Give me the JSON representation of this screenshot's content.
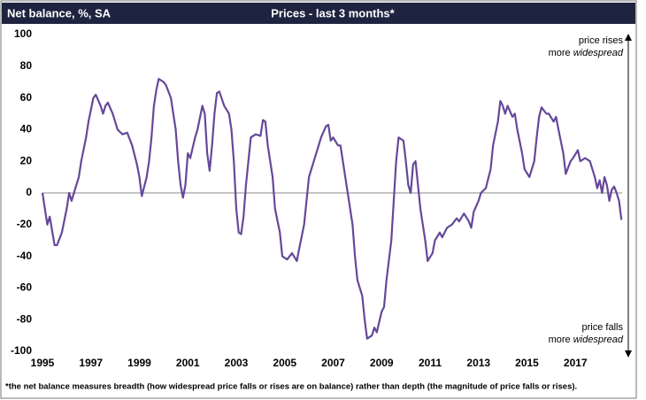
{
  "chart_data": {
    "type": "line",
    "title": "Prices - last 3 months*",
    "y_label": "Net balance, %, SA",
    "annotations": {
      "top": [
        "price rises",
        "more",
        "widespread"
      ],
      "bottom": [
        "price falls",
        "more",
        "widespread"
      ]
    },
    "footnote": "*the net balance measures breadth (how widespread price falls or rises are on balance)  rather than depth (the magnitude of price falls or rises).",
    "color": "#65489a",
    "xlim": [
      1995,
      2019
    ],
    "xticks": [
      1995,
      1997,
      1999,
      2001,
      2003,
      2005,
      2007,
      2009,
      2011,
      2013,
      2015,
      2017
    ],
    "ylim": [
      -100,
      100
    ],
    "yticks": [
      -100,
      -80,
      -60,
      -40,
      -20,
      0,
      20,
      40,
      60,
      80,
      100
    ],
    "x": [
      1995.0,
      1995.2,
      1995.3,
      1995.5,
      1995.6,
      1995.8,
      1996.0,
      1996.1,
      1996.2,
      1996.4,
      1996.5,
      1996.6,
      1996.8,
      1996.9,
      1997.1,
      1997.2,
      1997.4,
      1997.5,
      1997.6,
      1997.7,
      1997.9,
      1998.1,
      1998.3,
      1998.5,
      1998.7,
      1998.9,
      1999.0,
      1999.1,
      1999.3,
      1999.4,
      1999.5,
      1999.6,
      1999.7,
      1999.8,
      2000.0,
      2000.1,
      2000.3,
      2000.5,
      2000.6,
      2000.7,
      2000.8,
      2000.9,
      2001.0,
      2001.1,
      2001.3,
      2001.4,
      2001.6,
      2001.7,
      2001.8,
      2001.9,
      2002.0,
      2002.1,
      2002.2,
      2002.3,
      2002.5,
      2002.7,
      2002.8,
      2002.9,
      2003.0,
      2003.1,
      2003.2,
      2003.3,
      2003.4,
      2003.5,
      2003.6,
      2003.8,
      2004.0,
      2004.1,
      2004.2,
      2004.3,
      2004.5,
      2004.6,
      2004.8,
      2004.9,
      2005.1,
      2005.3,
      2005.5,
      2005.6,
      2005.8,
      2005.9,
      2006.0,
      2006.2,
      2006.4,
      2006.5,
      2006.7,
      2006.8,
      2006.9,
      2007.0,
      2007.2,
      2007.3,
      2007.4,
      2007.6,
      2007.8,
      2007.9,
      2008.0,
      2008.2,
      2008.3,
      2008.4,
      2008.6,
      2008.7,
      2008.8,
      2009.0,
      2009.1,
      2009.2,
      2009.4,
      2009.5,
      2009.6,
      2009.7,
      2009.9,
      2010.0,
      2010.1,
      2010.2,
      2010.3,
      2010.4,
      2010.6,
      2010.8,
      2010.9,
      2011.1,
      2011.2,
      2011.4,
      2011.5,
      2011.7,
      2011.9,
      2012.1,
      2012.2,
      2012.4,
      2012.6,
      2012.7,
      2012.8,
      2013.0,
      2013.1,
      2013.3,
      2013.5,
      2013.6,
      2013.8,
      2013.9,
      2014.0,
      2014.1,
      2014.2,
      2014.4,
      2014.5,
      2014.6,
      2014.8,
      2014.9,
      2015.1,
      2015.3,
      2015.4,
      2015.5,
      2015.6,
      2015.8,
      2015.9,
      2016.1,
      2016.2,
      2016.3,
      2016.5,
      2016.6,
      2016.8,
      2016.9,
      2017.1,
      2017.2,
      2017.4,
      2017.6,
      2017.7,
      2017.8,
      2017.9,
      2018.0,
      2018.1,
      2018.2,
      2018.3,
      2018.4,
      2018.5,
      2018.6,
      2018.7,
      2018.8,
      2018.9
    ],
    "values": [
      0,
      -20,
      -15,
      -33,
      -33,
      -25,
      -10,
      0,
      -5,
      5,
      10,
      20,
      35,
      45,
      60,
      62,
      55,
      50,
      55,
      57,
      50,
      40,
      37,
      38,
      30,
      18,
      10,
      -2,
      10,
      20,
      35,
      55,
      65,
      72,
      70,
      68,
      60,
      40,
      20,
      5,
      -3,
      5,
      25,
      22,
      35,
      40,
      55,
      50,
      25,
      14,
      30,
      50,
      63,
      64,
      55,
      50,
      40,
      20,
      -10,
      -25,
      -26,
      -15,
      5,
      20,
      35,
      37,
      36,
      46,
      45,
      30,
      10,
      -10,
      -25,
      -40,
      -42,
      -38,
      -43,
      -35,
      -20,
      -5,
      10,
      20,
      30,
      35,
      42,
      43,
      33,
      35,
      30,
      30,
      20,
      0,
      -20,
      -40,
      -55,
      -65,
      -80,
      -92,
      -90,
      -85,
      -88,
      -75,
      -72,
      -55,
      -30,
      -5,
      20,
      35,
      33,
      20,
      5,
      0,
      18,
      20,
      -10,
      -30,
      -43,
      -38,
      -30,
      -25,
      -28,
      -22,
      -20,
      -16,
      -18,
      -13,
      -18,
      -22,
      -12,
      -5,
      0,
      3,
      15,
      30,
      45,
      58,
      55,
      50,
      55,
      48,
      50,
      40,
      25,
      15,
      10,
      20,
      35,
      48,
      54,
      50,
      50,
      45,
      48,
      40,
      25,
      12,
      20,
      22,
      27,
      20,
      22,
      20,
      15,
      10,
      3,
      8,
      0,
      10,
      5,
      -5,
      2,
      4,
      0,
      -5,
      -17
    ]
  }
}
